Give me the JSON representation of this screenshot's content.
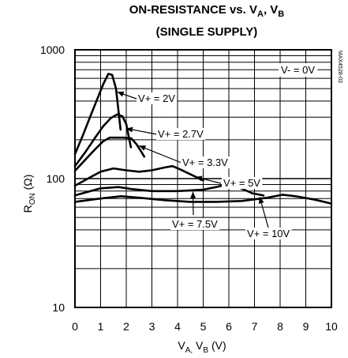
{
  "chart_data": {
    "type": "line",
    "title_line1_prefix": "ON-RESISTANCE vs. V",
    "title_line1_sub_a": "A",
    "title_line1_sep": ", V",
    "title_line1_sub_b": "B",
    "title_line2": "(SINGLE SUPPLY)",
    "xlabel": "VA, VB (V)",
    "ylabel": "RON (Ω)",
    "xlim": [
      0,
      10
    ],
    "ylim": [
      10,
      1000
    ],
    "yscale": "log",
    "xticks": [
      "0",
      "1",
      "2",
      "3",
      "4",
      "5",
      "6",
      "7",
      "8",
      "9",
      "10"
    ],
    "yticks": [
      {
        "value": 10,
        "label": "10"
      },
      {
        "value": 100,
        "label": "100"
      },
      {
        "value": 1000,
        "label": "1000"
      }
    ],
    "grid": true,
    "side_code": "MAX4528-03",
    "condition_label": "V- = 0V",
    "series": [
      {
        "name": "V+ = 2V",
        "x": [
          0,
          0.3,
          0.6,
          0.9,
          1.1,
          1.3,
          1.45,
          1.6,
          1.7,
          1.78
        ],
        "y": [
          155,
          215,
          305,
          430,
          540,
          650,
          640,
          500,
          330,
          240
        ]
      },
      {
        "name": "V+ = 2.7V",
        "x": [
          0,
          0.4,
          0.8,
          1.1,
          1.4,
          1.65,
          1.85,
          2.0,
          2.1,
          2.18
        ],
        "y": [
          125,
          160,
          210,
          255,
          295,
          315,
          305,
          265,
          210,
          175
        ]
      },
      {
        "name": "V+ = 3.3V",
        "x": [
          0,
          0.4,
          0.8,
          1.1,
          1.35,
          1.6,
          1.9,
          2.2,
          2.4,
          2.6,
          2.7
        ],
        "y": [
          115,
          140,
          170,
          195,
          208,
          208,
          208,
          205,
          185,
          160,
          148
        ]
      },
      {
        "name": "V+ = 5V",
        "x": [
          0,
          0.5,
          1.0,
          1.5,
          2.0,
          2.5,
          3.0,
          3.5,
          3.8,
          4.1,
          4.5,
          5.0
        ],
        "y": [
          88,
          100,
          113,
          120,
          116,
          113,
          116,
          122,
          125,
          118,
          108,
          97
        ]
      },
      {
        "name": "V+ = 7.5V",
        "x": [
          0,
          0.5,
          1.0,
          1.7,
          2.2,
          3.0,
          4.0,
          5.0,
          5.5,
          5.9,
          6.3,
          6.6,
          6.9,
          7.35
        ],
        "y": [
          74,
          79,
          84,
          86,
          83,
          80,
          80,
          82,
          86,
          90,
          87,
          82,
          77,
          74
        ]
      },
      {
        "name": "V+ = 10V",
        "x": [
          0,
          1.0,
          1.8,
          2.5,
          3.5,
          4.5,
          5.5,
          6.5,
          7.5,
          8.1,
          8.6,
          9.3,
          10
        ],
        "y": [
          66,
          70,
          73,
          71,
          68,
          66,
          66,
          67,
          71,
          75,
          73,
          69,
          64
        ]
      }
    ],
    "annotations": [
      {
        "text": "V+ = 2V",
        "series": "V+ = 2V"
      },
      {
        "text": "V+ = 2.7V",
        "series": "V+ = 2.7V"
      },
      {
        "text": "V+ = 3.3V",
        "series": "V+ = 3.3V"
      },
      {
        "text": "V+ = 5V",
        "series": "V+ = 5V"
      },
      {
        "text": "V+ = 7.5V",
        "series": "V+ = 7.5V"
      },
      {
        "text": "V+ = 10V",
        "series": "V+ = 10V"
      }
    ]
  }
}
